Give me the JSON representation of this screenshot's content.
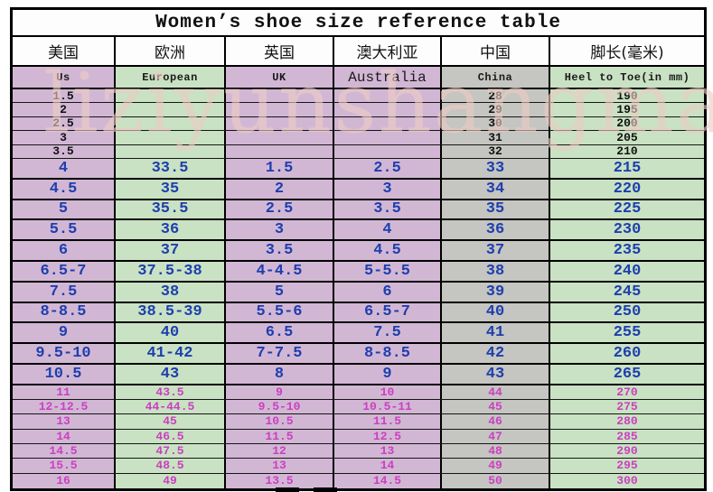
{
  "title": "Women’s shoe size reference table",
  "watermark": "liziyunshangmao",
  "colors": {
    "cell_pink": "#d2b7d5",
    "cell_green": "#c9e2c3",
    "cell_gray": "#c5c5c1",
    "text_black": "#111111",
    "text_blue": "#1e3fae",
    "text_magenta": "#cb3fc0",
    "watermark_pink": "#ecccc3",
    "border": "#000000"
  },
  "table": {
    "header_cn": [
      "美国",
      "欧洲",
      "英国",
      "澳大利亚",
      "中国",
      "脚长(毫米)"
    ],
    "header_en": [
      "Us",
      "European",
      "UK",
      "Australia",
      "China",
      "Heel to Toe(in mm)"
    ],
    "sections": [
      {
        "id": "top",
        "text_color_name": "black",
        "rows": [
          [
            "1.5",
            "",
            "",
            "",
            "28",
            "190"
          ],
          [
            "2",
            "",
            "",
            "",
            "29",
            "195"
          ],
          [
            "2.5",
            "",
            "",
            "",
            "30",
            "200"
          ],
          [
            "3",
            "",
            "",
            "",
            "31",
            "205"
          ],
          [
            "3.5",
            "",
            "",
            "",
            "32",
            "210"
          ]
        ]
      },
      {
        "id": "mid",
        "text_color_name": "blue",
        "rows": [
          [
            "4",
            "33.5",
            "1.5",
            "2.5",
            "33",
            "215"
          ],
          [
            "4.5",
            "35",
            "2",
            "3",
            "34",
            "220"
          ],
          [
            "5",
            "35.5",
            "2.5",
            "3.5",
            "35",
            "225"
          ],
          [
            "5.5",
            "36",
            "3",
            "4",
            "36",
            "230"
          ],
          [
            "6",
            "37",
            "3.5",
            "4.5",
            "37",
            "235"
          ],
          [
            "6.5-7",
            "37.5-38",
            "4-4.5",
            "5-5.5",
            "38",
            "240"
          ],
          [
            "7.5",
            "38",
            "5",
            "6",
            "39",
            "245"
          ],
          [
            "8-8.5",
            "38.5-39",
            "5.5-6",
            "6.5-7",
            "40",
            "250"
          ],
          [
            "9",
            "40",
            "6.5",
            "7.5",
            "41",
            "255"
          ],
          [
            "9.5-10",
            "41-42",
            "7-7.5",
            "8-8.5",
            "42",
            "260"
          ],
          [
            "10.5",
            "43",
            "8",
            "9",
            "43",
            "265"
          ]
        ]
      },
      {
        "id": "bottom",
        "text_color_name": "magenta",
        "rows": [
          [
            "11",
            "43.5",
            "9",
            "10",
            "44",
            "270"
          ],
          [
            "12-12.5",
            "44-44.5",
            "9.5-10",
            "10.5-11",
            "45",
            "275"
          ],
          [
            "13",
            "45",
            "10.5",
            "11.5",
            "46",
            "280"
          ],
          [
            "14",
            "46.5",
            "11.5",
            "12.5",
            "47",
            "285"
          ],
          [
            "14.5",
            "47.5",
            "12",
            "13",
            "48",
            "290"
          ],
          [
            "15.5",
            "48.5",
            "13",
            "14",
            "49",
            "295"
          ],
          [
            "16",
            "49",
            "13.5",
            "14.5",
            "50",
            "300"
          ]
        ]
      }
    ]
  },
  "chart_data": {
    "type": "table",
    "title": "Women’s shoe size reference table",
    "columns": [
      "Us",
      "European",
      "UK",
      "Australia",
      "China",
      "Heel to Toe(in mm)"
    ],
    "columns_cn": [
      "美国",
      "欧洲",
      "英国",
      "澳大利亚",
      "中国",
      "脚长(毫米)"
    ],
    "rows": [
      [
        "1.5",
        "",
        "",
        "",
        "28",
        "190"
      ],
      [
        "2",
        "",
        "",
        "",
        "29",
        "195"
      ],
      [
        "2.5",
        "",
        "",
        "",
        "30",
        "200"
      ],
      [
        "3",
        "",
        "",
        "",
        "31",
        "205"
      ],
      [
        "3.5",
        "",
        "",
        "",
        "32",
        "210"
      ],
      [
        "4",
        "33.5",
        "1.5",
        "2.5",
        "33",
        "215"
      ],
      [
        "4.5",
        "35",
        "2",
        "3",
        "34",
        "220"
      ],
      [
        "5",
        "35.5",
        "2.5",
        "3.5",
        "35",
        "225"
      ],
      [
        "5.5",
        "36",
        "3",
        "4",
        "36",
        "230"
      ],
      [
        "6",
        "37",
        "3.5",
        "4.5",
        "37",
        "235"
      ],
      [
        "6.5-7",
        "37.5-38",
        "4-4.5",
        "5-5.5",
        "38",
        "240"
      ],
      [
        "7.5",
        "38",
        "5",
        "6",
        "39",
        "245"
      ],
      [
        "8-8.5",
        "38.5-39",
        "5.5-6",
        "6.5-7",
        "40",
        "250"
      ],
      [
        "9",
        "40",
        "6.5",
        "7.5",
        "41",
        "255"
      ],
      [
        "9.5-10",
        "41-42",
        "7-7.5",
        "8-8.5",
        "42",
        "260"
      ],
      [
        "10.5",
        "43",
        "8",
        "9",
        "43",
        "265"
      ],
      [
        "11",
        "43.5",
        "9",
        "10",
        "44",
        "270"
      ],
      [
        "12-12.5",
        "44-44.5",
        "9.5-10",
        "10.5-11",
        "45",
        "275"
      ],
      [
        "13",
        "45",
        "10.5",
        "11.5",
        "46",
        "280"
      ],
      [
        "14",
        "46.5",
        "11.5",
        "12.5",
        "47",
        "285"
      ],
      [
        "14.5",
        "47.5",
        "12",
        "13",
        "48",
        "290"
      ],
      [
        "15.5",
        "48.5",
        "13",
        "14",
        "49",
        "295"
      ],
      [
        "16",
        "49",
        "13.5",
        "14.5",
        "50",
        "300"
      ]
    ]
  }
}
